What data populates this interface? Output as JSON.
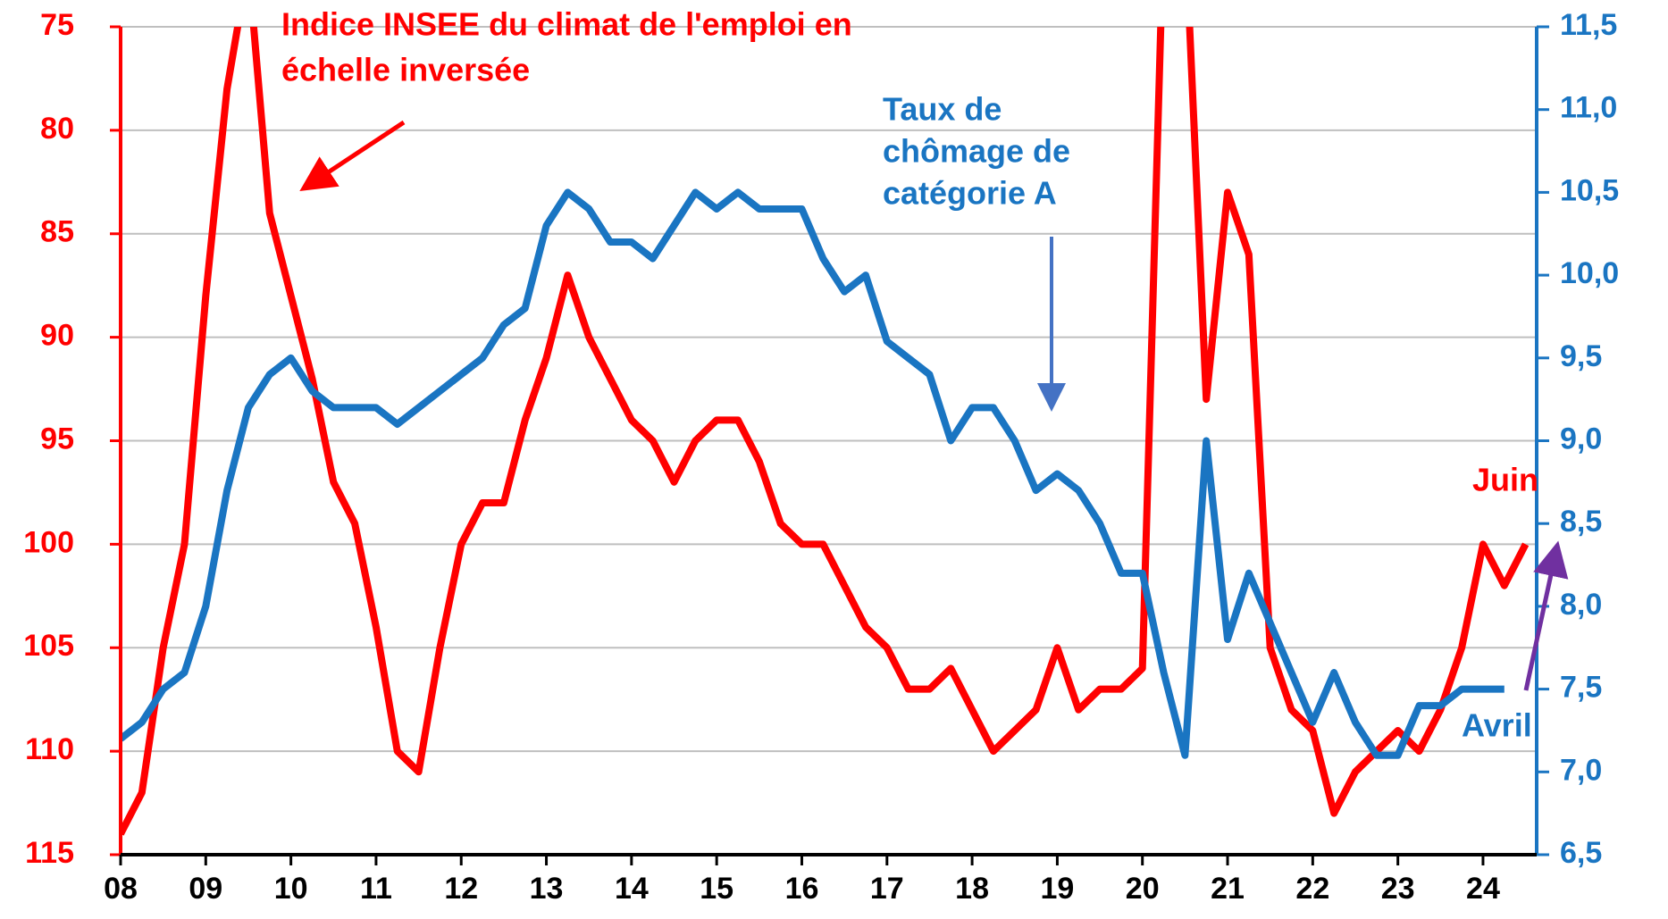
{
  "chart_data": {
    "type": "line",
    "annotations": [
      {
        "lines": [
          "Indice INSEE du climat de l'emploi en",
          "échelle inversée"
        ],
        "color": "#ff0000"
      },
      {
        "lines": [
          "Taux de",
          "chômage de",
          "catégorie A"
        ],
        "color": "#1a75c2"
      },
      {
        "text": "Juin",
        "color": "#ff0000"
      },
      {
        "text": "Avril",
        "color": "#1a75c2"
      }
    ],
    "xlim": [
      2008,
      2024.63
    ],
    "xticks": [
      {
        "value": 2008,
        "label": "08"
      },
      {
        "value": 2009,
        "label": "09"
      },
      {
        "value": 2010,
        "label": "10"
      },
      {
        "value": 2011,
        "label": "11"
      },
      {
        "value": 2012,
        "label": "12"
      },
      {
        "value": 2013,
        "label": "13"
      },
      {
        "value": 2014,
        "label": "14"
      },
      {
        "value": 2015,
        "label": "15"
      },
      {
        "value": 2016,
        "label": "16"
      },
      {
        "value": 2017,
        "label": "17"
      },
      {
        "value": 2018,
        "label": "18"
      },
      {
        "value": 2019,
        "label": "19"
      },
      {
        "value": 2020,
        "label": "20"
      },
      {
        "value": 2021,
        "label": "21"
      },
      {
        "value": 2022,
        "label": "22"
      },
      {
        "value": 2023,
        "label": "23"
      },
      {
        "value": 2024,
        "label": "24"
      }
    ],
    "ylim": [
      115,
      75
    ],
    "yticks": [
      75,
      80,
      85,
      90,
      95,
      100,
      105,
      110,
      115
    ],
    "y2lim": [
      6.5,
      11.5
    ],
    "y2ticks": [
      {
        "value": 6.5,
        "label": "6,5"
      },
      {
        "value": 7.0,
        "label": "7,0"
      },
      {
        "value": 7.5,
        "label": "7,5"
      },
      {
        "value": 8.0,
        "label": "8,0"
      },
      {
        "value": 8.5,
        "label": "8,5"
      },
      {
        "value": 9.0,
        "label": "9,0"
      },
      {
        "value": 9.5,
        "label": "9,5"
      },
      {
        "value": 10.0,
        "label": "10,0"
      },
      {
        "value": 10.5,
        "label": "10,5"
      },
      {
        "value": 11.0,
        "label": "11,0"
      },
      {
        "value": 11.5,
        "label": "11,5"
      }
    ],
    "grid": true,
    "series": [
      {
        "color": "#ff0000",
        "axis": "y",
        "x": [
          2008,
          2008.25,
          2008.5,
          2008.75,
          2009,
          2009.25,
          2009.5,
          2009.75,
          2010,
          2010.25,
          2010.5,
          2010.75,
          2011,
          2011.25,
          2011.5,
          2011.75,
          2012,
          2012.25,
          2012.5,
          2012.75,
          2013,
          2013.25,
          2013.5,
          2013.75,
          2014,
          2014.25,
          2014.5,
          2014.75,
          2015,
          2015.25,
          2015.5,
          2015.75,
          2016,
          2016.25,
          2016.5,
          2016.75,
          2017,
          2017.25,
          2017.5,
          2017.75,
          2018,
          2018.25,
          2018.5,
          2018.75,
          2019,
          2019.25,
          2019.5,
          2019.75,
          2020,
          2020.25,
          2020.5,
          2020.75,
          2021,
          2021.25,
          2021.5,
          2021.75,
          2022,
          2022.25,
          2022.5,
          2022.75,
          2023,
          2023.25,
          2023.5,
          2023.75,
          2024,
          2024.25,
          2024.5
        ],
        "values": [
          114,
          112,
          105,
          100,
          88,
          78,
          72,
          84,
          88,
          92,
          97,
          99,
          104,
          110,
          111,
          105,
          100,
          98,
          98,
          94,
          91,
          87,
          90,
          92,
          94,
          95,
          97,
          95,
          94,
          94,
          96,
          99,
          100,
          100,
          102,
          104,
          105,
          107,
          107,
          106,
          108,
          110,
          109,
          108,
          105,
          108,
          107,
          107,
          106,
          70,
          70,
          93,
          83,
          86,
          105,
          108,
          109,
          113,
          111,
          110,
          109,
          110,
          108,
          105,
          100,
          102,
          100
        ]
      },
      {
        "color": "#1a75c2",
        "axis": "y2",
        "x": [
          2008,
          2008.25,
          2008.5,
          2008.75,
          2009,
          2009.25,
          2009.5,
          2009.75,
          2010,
          2010.25,
          2010.5,
          2010.75,
          2011,
          2011.25,
          2011.5,
          2011.75,
          2012,
          2012.25,
          2012.5,
          2012.75,
          2013,
          2013.25,
          2013.5,
          2013.75,
          2014,
          2014.25,
          2014.5,
          2014.75,
          2015,
          2015.25,
          2015.5,
          2015.75,
          2016,
          2016.25,
          2016.5,
          2016.75,
          2017,
          2017.25,
          2017.5,
          2017.75,
          2018,
          2018.25,
          2018.5,
          2018.75,
          2019,
          2019.25,
          2019.5,
          2019.75,
          2020,
          2020.25,
          2020.5,
          2020.75,
          2021,
          2021.25,
          2021.5,
          2021.75,
          2022,
          2022.25,
          2022.5,
          2022.75,
          2023,
          2023.25,
          2023.5,
          2023.75,
          2024,
          2024.25
        ],
        "values": [
          7.2,
          7.3,
          7.5,
          7.6,
          8.0,
          8.7,
          9.2,
          9.4,
          9.5,
          9.3,
          9.2,
          9.2,
          9.2,
          9.1,
          9.2,
          9.3,
          9.4,
          9.5,
          9.7,
          9.8,
          10.3,
          10.5,
          10.4,
          10.2,
          10.2,
          10.1,
          10.3,
          10.5,
          10.4,
          10.5,
          10.4,
          10.4,
          10.4,
          10.1,
          9.9,
          10.0,
          9.6,
          9.5,
          9.4,
          9.0,
          9.2,
          9.2,
          9.0,
          8.7,
          8.8,
          8.7,
          8.5,
          8.2,
          8.2,
          7.6,
          7.1,
          9.0,
          7.8,
          8.2,
          7.9,
          7.6,
          7.3,
          7.6,
          7.3,
          7.1,
          7.1,
          7.4,
          7.4,
          7.5,
          7.5,
          7.5
        ]
      }
    ]
  }
}
